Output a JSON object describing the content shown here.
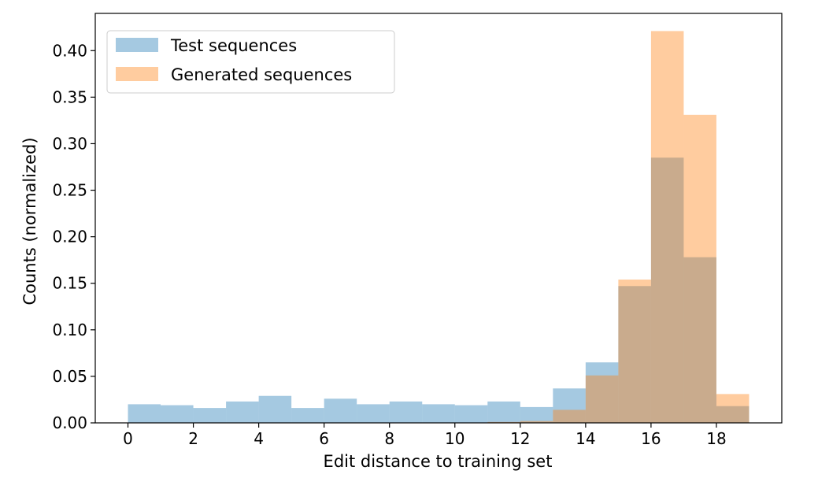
{
  "chart_data": {
    "type": "histogram",
    "xlabel": "Edit distance to training set",
    "ylabel": "Counts (normalized)",
    "xlim": [
      -1,
      20
    ],
    "ylim": [
      0,
      0.44
    ],
    "xticks": [
      0,
      2,
      4,
      6,
      8,
      10,
      12,
      14,
      16,
      18
    ],
    "xtick_labels": [
      "0",
      "2",
      "4",
      "6",
      "8",
      "10",
      "12",
      "14",
      "16",
      "18"
    ],
    "yticks": [
      0.0,
      0.05,
      0.1,
      0.15,
      0.2,
      0.25,
      0.3,
      0.35,
      0.4
    ],
    "ytick_labels": [
      "0.00",
      "0.05",
      "0.10",
      "0.15",
      "0.20",
      "0.25",
      "0.30",
      "0.35",
      "0.40"
    ],
    "legend_position": "top-left",
    "series": [
      {
        "name": "Test sequences",
        "color": "#1f77b4",
        "alpha": 0.4,
        "bins": [
          {
            "start": 0,
            "end": 1,
            "value": 0.02
          },
          {
            "start": 1,
            "end": 2,
            "value": 0.019
          },
          {
            "start": 2,
            "end": 3,
            "value": 0.016
          },
          {
            "start": 3,
            "end": 4,
            "value": 0.023
          },
          {
            "start": 4,
            "end": 5,
            "value": 0.029
          },
          {
            "start": 5,
            "end": 6,
            "value": 0.016
          },
          {
            "start": 6,
            "end": 7,
            "value": 0.026
          },
          {
            "start": 7,
            "end": 8,
            "value": 0.02
          },
          {
            "start": 8,
            "end": 9,
            "value": 0.023
          },
          {
            "start": 9,
            "end": 10,
            "value": 0.02
          },
          {
            "start": 10,
            "end": 11,
            "value": 0.019
          },
          {
            "start": 11,
            "end": 12,
            "value": 0.023
          },
          {
            "start": 12,
            "end": 13,
            "value": 0.017
          },
          {
            "start": 13,
            "end": 14,
            "value": 0.037
          },
          {
            "start": 14,
            "end": 15,
            "value": 0.065
          },
          {
            "start": 15,
            "end": 16,
            "value": 0.147
          },
          {
            "start": 16,
            "end": 17,
            "value": 0.285
          },
          {
            "start": 17,
            "end": 18,
            "value": 0.178
          },
          {
            "start": 18,
            "end": 19,
            "value": 0.018
          }
        ]
      },
      {
        "name": "Generated sequences",
        "color": "#ff7f0e",
        "alpha": 0.4,
        "bins": [
          {
            "start": 11,
            "end": 12,
            "value": 0.001
          },
          {
            "start": 12,
            "end": 13,
            "value": 0.002
          },
          {
            "start": 13,
            "end": 14,
            "value": 0.014
          },
          {
            "start": 14,
            "end": 15,
            "value": 0.051
          },
          {
            "start": 15,
            "end": 16,
            "value": 0.154
          },
          {
            "start": 16,
            "end": 17,
            "value": 0.421
          },
          {
            "start": 17,
            "end": 18,
            "value": 0.331
          },
          {
            "start": 18,
            "end": 19,
            "value": 0.031
          }
        ]
      }
    ]
  }
}
